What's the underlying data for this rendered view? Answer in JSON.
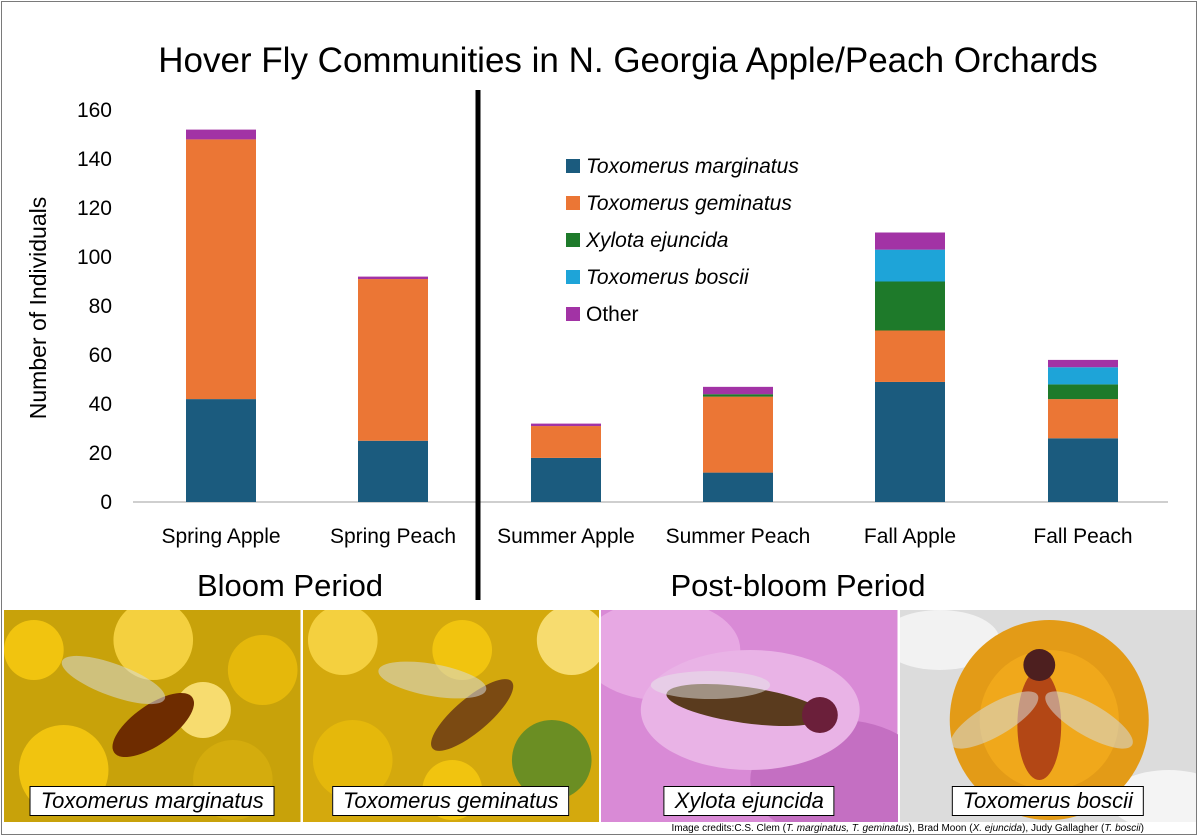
{
  "chart_data": {
    "type": "bar",
    "stacked": true,
    "title": "Hover Fly Communities in N. Georgia Apple/Peach Orchards",
    "ylabel": "Number of Individuals",
    "ylim": [
      0,
      160
    ],
    "yticks": [
      0,
      20,
      40,
      60,
      80,
      100,
      120,
      140,
      160
    ],
    "categories": [
      "Spring Apple",
      "Spring Peach",
      "Summer Apple",
      "Summer Peach",
      "Fall Apple",
      "Fall Peach"
    ],
    "series": [
      {
        "name": "Toxomerus marginatus",
        "color": "#1b5b7e",
        "italic": true,
        "values": [
          42,
          25,
          18,
          12,
          49,
          26
        ]
      },
      {
        "name": "Toxomerus geminatus",
        "color": "#eb7635",
        "italic": true,
        "values": [
          106,
          66,
          13,
          31,
          21,
          16
        ]
      },
      {
        "name": "Xylota ejuncida",
        "color": "#1e7a2a",
        "italic": true,
        "values": [
          0,
          0,
          0,
          1,
          20,
          6
        ]
      },
      {
        "name": "Toxomerus boscii",
        "color": "#1ea4d8",
        "italic": true,
        "values": [
          0,
          0,
          0,
          0,
          13,
          7
        ]
      },
      {
        "name": "Other",
        "color": "#a233a5",
        "italic": false,
        "values": [
          4,
          1,
          1,
          3,
          7,
          3
        ]
      }
    ],
    "legend_position": "top-right",
    "grid": false,
    "period_labels": [
      "Bloom Period",
      "Post-bloom Period"
    ]
  },
  "photos": [
    {
      "caption": "Toxomerus marginatus",
      "scene": "yellow-flowers"
    },
    {
      "caption": "Toxomerus geminatus",
      "scene": "yellow-flowers"
    },
    {
      "caption": "Xylota ejuncida",
      "scene": "pink-petals"
    },
    {
      "caption": "Toxomerus boscii",
      "scene": "orange-flower-center"
    }
  ],
  "credits": {
    "prefix": "Image credits:C.S. Clem (",
    "c1": "T. marginatus, T. geminatus",
    "m1": "), Brad Moon (",
    "c2": "X. ejuncida",
    "m2": "), Judy Gallagher (",
    "c3": "T. boscii",
    "suffix": ")"
  }
}
